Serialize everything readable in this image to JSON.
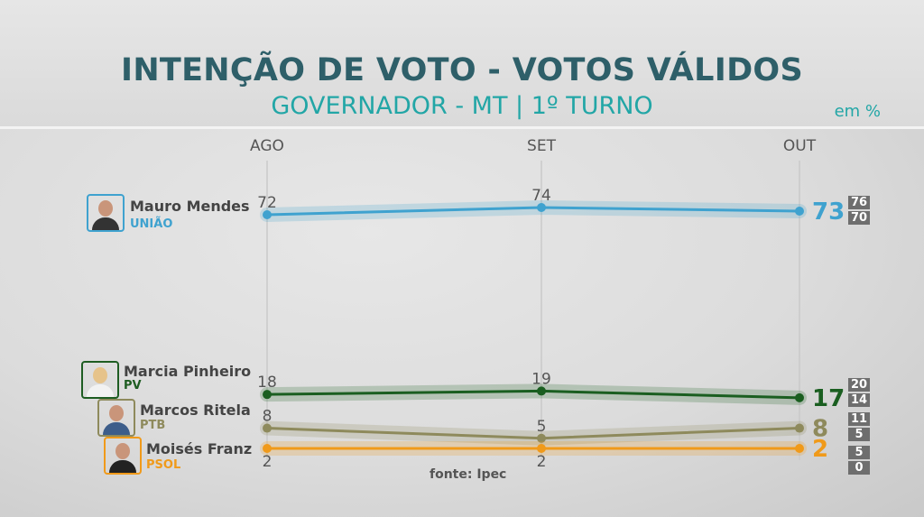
{
  "header": {
    "title": "INTENÇÃO DE VOTO - VOTOS VÁLIDOS",
    "subtitle": "GOVERNADOR - MT | 1º TURNO",
    "unit": "em %"
  },
  "source": "fonte: Ipec",
  "chart_data": {
    "type": "line",
    "categories": [
      "AGO",
      "SET",
      "OUT"
    ],
    "unit": "em %",
    "series": [
      {
        "name": "Mauro Mendes",
        "party": "UNIÃO",
        "color": "#3fa2cf",
        "party_color": "#3fa2cf",
        "values": [
          72,
          74,
          73
        ],
        "final_range": {
          "high": 76,
          "low": 70
        }
      },
      {
        "name": "Marcia Pinheiro",
        "party": "PV",
        "color": "#1a5e20",
        "party_color": "#1e5d22",
        "values": [
          18,
          19,
          17
        ],
        "final_range": {
          "high": 20,
          "low": 14
        }
      },
      {
        "name": "Marcos Ritela",
        "party": "PTB",
        "color": "#8e8a5c",
        "party_color": "#8e8a5c",
        "values": [
          8,
          5,
          8
        ],
        "final_range": {
          "high": 11,
          "low": 5
        }
      },
      {
        "name": "Moisés Franz",
        "party": "PSOL",
        "color": "#f09a1a",
        "party_color": "#f09a1a",
        "values": [
          2,
          2,
          2
        ],
        "final_range": {
          "high": 5,
          "low": 0
        }
      }
    ]
  }
}
